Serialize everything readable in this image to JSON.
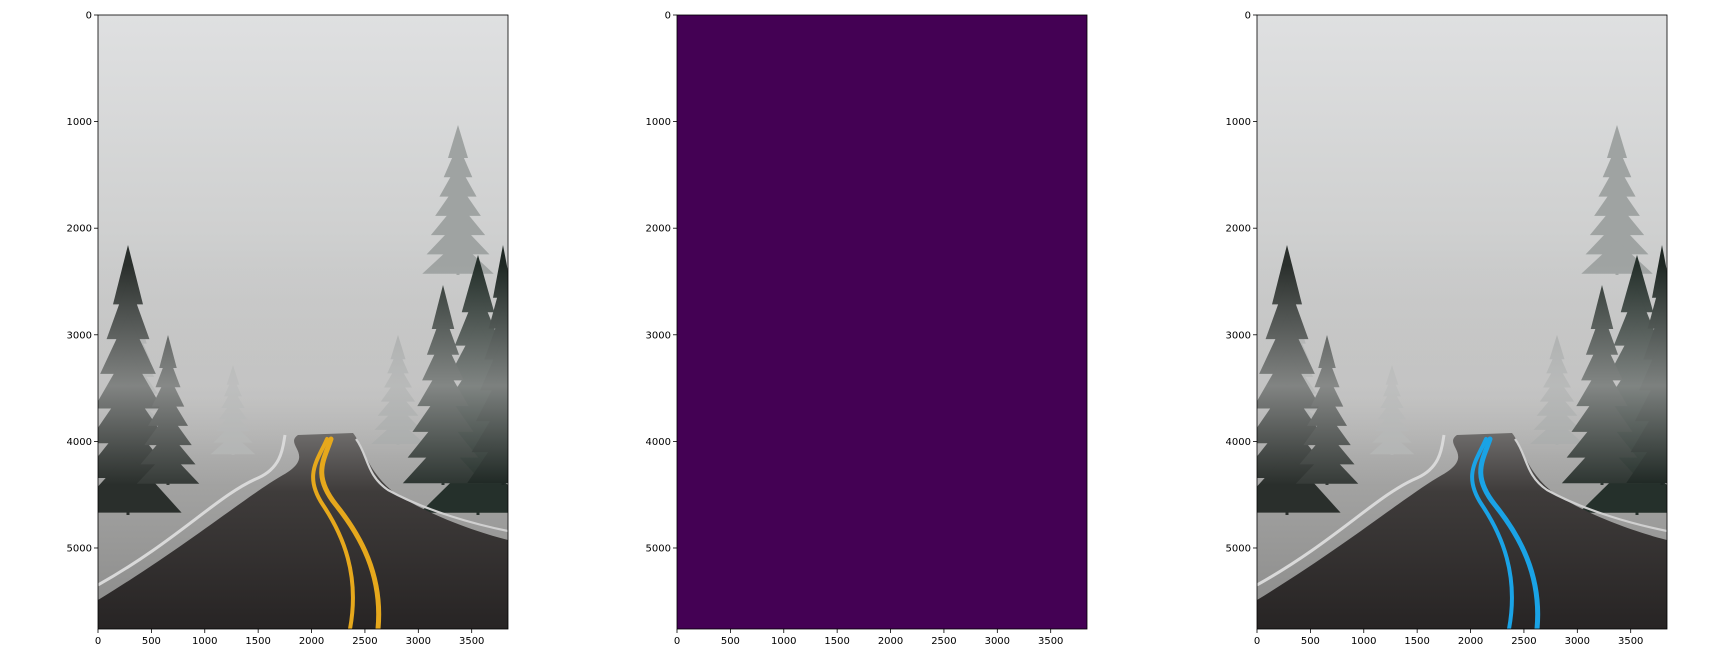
{
  "chart_data": [
    {
      "type": "image",
      "content": "photo of a foggy forest road with yellow center lines",
      "xlim": [
        0,
        3840
      ],
      "ylim": [
        5760,
        0
      ],
      "xticks": [
        0,
        500,
        1000,
        1500,
        2000,
        2500,
        3000,
        3500
      ],
      "yticks": [
        0,
        1000,
        2000,
        3000,
        4000,
        5000
      ],
      "line_color": "#e6a81c"
    },
    {
      "type": "heatmap",
      "content": "uniform mask, all zeros",
      "fill_color": "#440154",
      "xlim": [
        0,
        3840
      ],
      "ylim": [
        5760,
        0
      ],
      "xticks": [
        0,
        500,
        1000,
        1500,
        2000,
        2500,
        3000,
        3500
      ],
      "yticks": [
        0,
        1000,
        2000,
        3000,
        4000,
        5000
      ]
    },
    {
      "type": "image",
      "content": "same foggy road photo with color channels swapped (center lines appear blue)",
      "xlim": [
        0,
        3840
      ],
      "ylim": [
        5760,
        0
      ],
      "xticks": [
        0,
        500,
        1000,
        1500,
        2000,
        2500,
        3000,
        3500
      ],
      "yticks": [
        0,
        1000,
        2000,
        3000,
        4000,
        5000
      ],
      "line_color": "#1aa3e6"
    }
  ]
}
